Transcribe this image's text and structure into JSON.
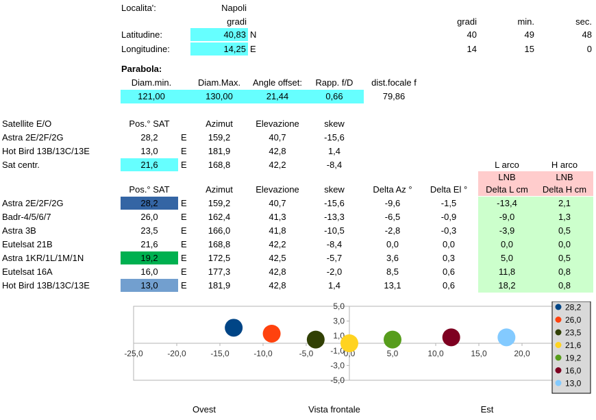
{
  "location": {
    "label": "Localita':",
    "city": "Napoli",
    "degrees_label": "gradi",
    "lat_label": "Latitudine:",
    "lat_value": "40,83",
    "lat_dir": "N",
    "lon_label": "Longitudine:",
    "lon_value": "14,25",
    "lon_dir": "E",
    "dms_headers": [
      "gradi",
      "min.",
      "sec."
    ],
    "lat_dms": [
      "40",
      "49",
      "48"
    ],
    "lon_dms": [
      "14",
      "15",
      "0"
    ]
  },
  "dish": {
    "title": "Parabola:",
    "headers": [
      "Diam.min.",
      "Diam.Max.",
      "Angle offset:",
      "Rapp. f/D",
      "dist.focale f"
    ],
    "values": [
      "121,00",
      "130,00",
      "21,44",
      "0,66",
      "79,86"
    ]
  },
  "table1": {
    "headers": [
      "Satellite E/O",
      "Pos.° SAT",
      "",
      "Azimut",
      "Elevazione",
      "skew"
    ],
    "rows": [
      [
        "Astra 2E/2F/2G",
        "28,2",
        "E",
        "159,2",
        "40,7",
        "-15,6"
      ],
      [
        "Hot Bird 13B/13C/13E",
        "13,0",
        "E",
        "181,9",
        "42,8",
        "1,4"
      ],
      [
        "Sat centr.",
        "21,6",
        "E",
        "168,8",
        "42,2",
        "-8,4"
      ]
    ]
  },
  "lnb_header": {
    "l_line1": "L arco",
    "l_line2": "LNB",
    "h_line1": "H arco",
    "h_line2": "LNB"
  },
  "table2": {
    "headers": [
      "Pos.° SAT",
      "Azimut",
      "Elevazione",
      "skew",
      "Delta Az °",
      "Delta El °",
      "Delta L cm",
      "Delta H cm"
    ],
    "rows": [
      [
        "Astra 2E/2F/2G",
        "28,2",
        "E",
        "159,2",
        "40,7",
        "-15,6",
        "-9,6",
        "-1,5",
        "-13,4",
        "2,1"
      ],
      [
        "Badr-4/5/6/7",
        "26,0",
        "E",
        "162,4",
        "41,3",
        "-13,3",
        "-6,5",
        "-0,9",
        "-9,0",
        "1,3"
      ],
      [
        "Astra 3B",
        "23,5",
        "E",
        "166,0",
        "41,8",
        "-10,5",
        "-2,8",
        "-0,3",
        "-3,9",
        "0,5"
      ],
      [
        "Eutelsat 21B",
        "21,6",
        "E",
        "168,8",
        "42,2",
        "-8,4",
        "0,0",
        "0,0",
        "0,0",
        "0,0"
      ],
      [
        "Astra 1KR/1L/1M/1N",
        "19,2",
        "E",
        "172,5",
        "42,5",
        "-5,7",
        "3,6",
        "0,3",
        "5,0",
        "0,5"
      ],
      [
        "Eutelsat 16A",
        "16,0",
        "E",
        "177,3",
        "42,8",
        "-2,0",
        "8,5",
        "0,6",
        "11,8",
        "0,8"
      ],
      [
        "Hot Bird 13B/13C/13E",
        "13,0",
        "E",
        "181,9",
        "42,8",
        "1,4",
        "13,1",
        "0,6",
        "18,2",
        "0,8"
      ]
    ]
  },
  "chart_data": {
    "type": "scatter",
    "xlim": [
      -25,
      25
    ],
    "ylim": [
      -5,
      5
    ],
    "xticks": [
      "-25,0",
      "-20,0",
      "-15,0",
      "-10,0",
      "-5,0",
      "0,0",
      "5,0",
      "10,0",
      "15,0",
      "20,0"
    ],
    "yticks": [
      "5,0",
      "3,0",
      "1,0",
      "-1,0",
      "-3,0",
      "-5,0"
    ],
    "legend_position": "right",
    "series": [
      {
        "name": "28,2",
        "x": -13.4,
        "y": 2.1,
        "color": "#004586"
      },
      {
        "name": "26,0",
        "x": -9.0,
        "y": 1.3,
        "color": "#ff420e"
      },
      {
        "name": "23,5",
        "x": -3.9,
        "y": 0.5,
        "color": "#314004"
      },
      {
        "name": "21,6",
        "x": 0.0,
        "y": 0.0,
        "color": "#ffd320"
      },
      {
        "name": "19,2",
        "x": 5.0,
        "y": 0.5,
        "color": "#579d1c"
      },
      {
        "name": "16,0",
        "x": 11.8,
        "y": 0.8,
        "color": "#7e0021"
      },
      {
        "name": "13,0",
        "x": 18.2,
        "y": 0.8,
        "color": "#83caff"
      }
    ],
    "captions": [
      "Ovest",
      "Vista frontale",
      "Est"
    ]
  }
}
